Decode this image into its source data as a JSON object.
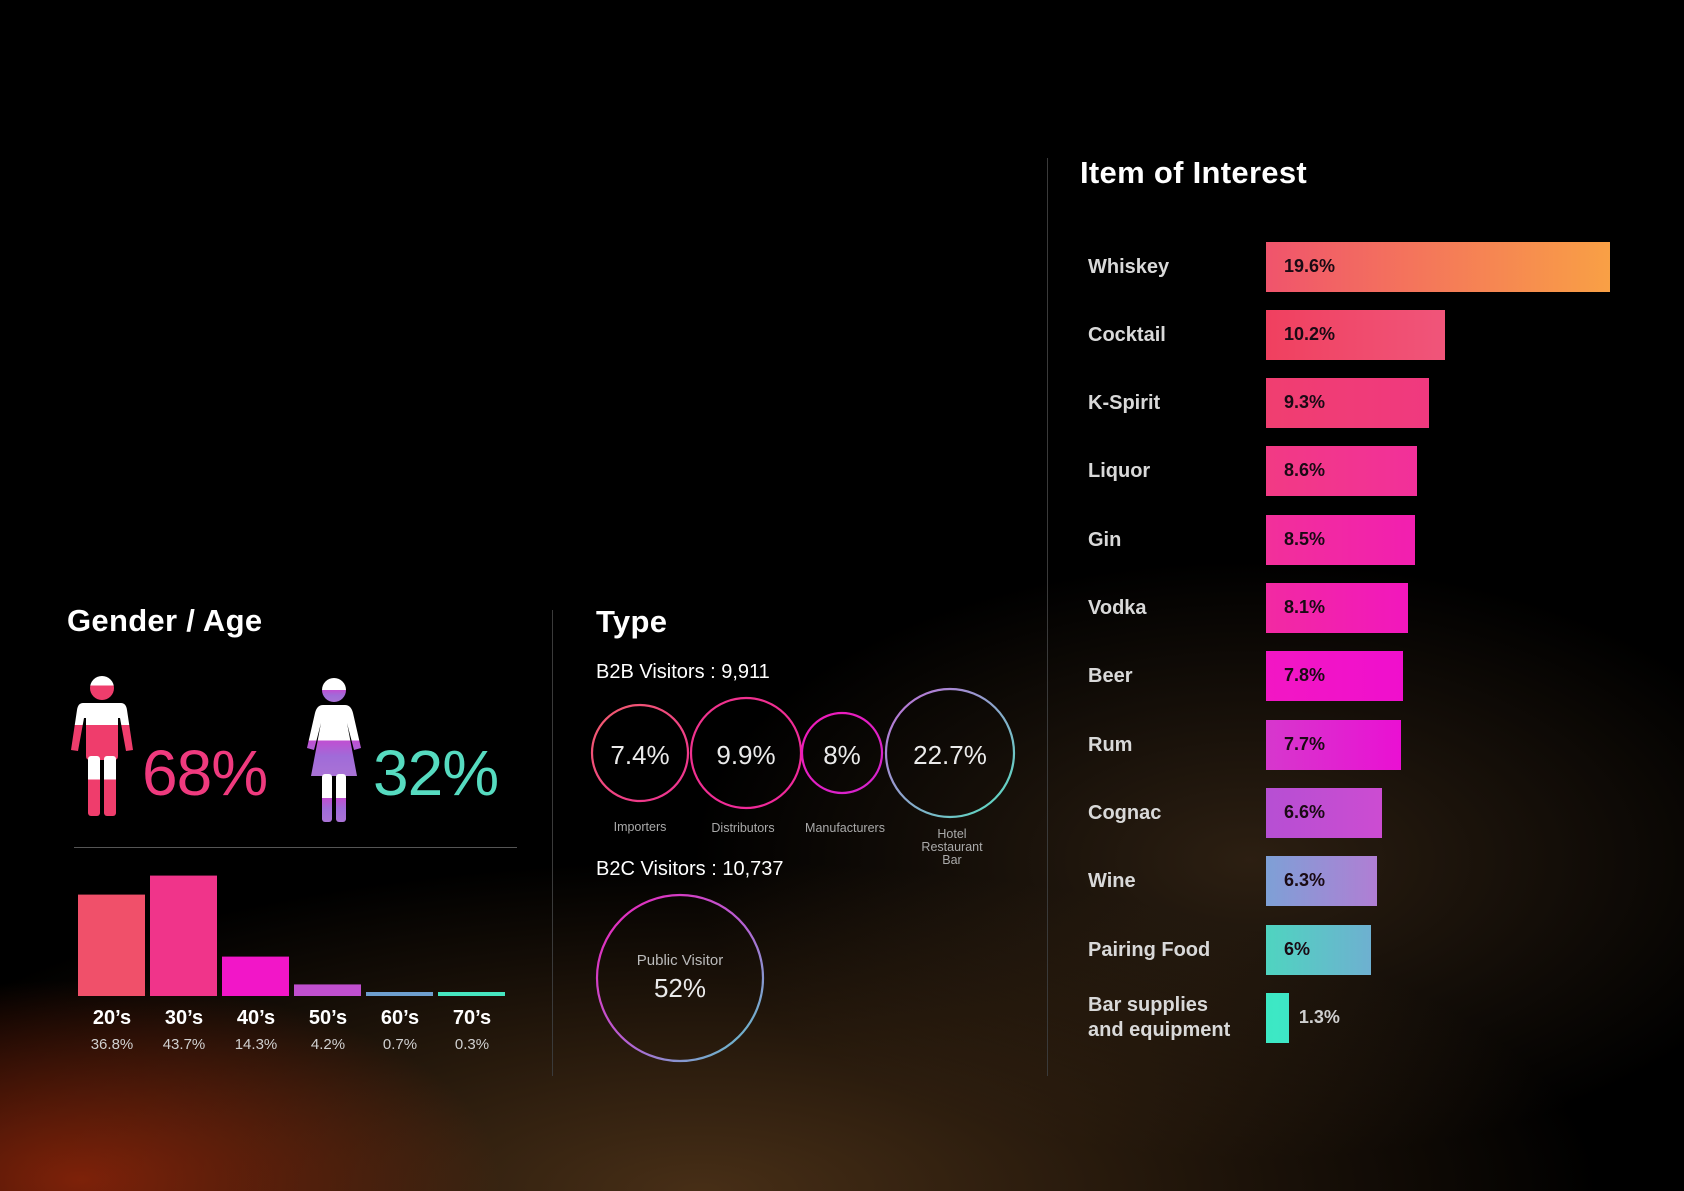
{
  "gender_age": {
    "title": "Gender / Age",
    "male_pct": "68%",
    "female_pct": "32%",
    "ages": [
      {
        "label": "20’s",
        "pct": "36.8%"
      },
      {
        "label": "30’s",
        "pct": "43.7%"
      },
      {
        "label": "40’s",
        "pct": "14.3%"
      },
      {
        "label": "50’s",
        "pct": "4.2%"
      },
      {
        "label": "60’s",
        "pct": "0.7%"
      },
      {
        "label": "70’s",
        "pct": "0.3%"
      }
    ]
  },
  "type": {
    "title": "Type",
    "b2b_label": "B2B Visitors : 9,911",
    "b2b": [
      {
        "pct": "7.4%",
        "caption": [
          "Importers"
        ]
      },
      {
        "pct": "9.9%",
        "caption": [
          "Distributors"
        ]
      },
      {
        "pct": "8%",
        "caption": [
          "Manufacturers"
        ]
      },
      {
        "pct": "22.7%",
        "caption": [
          "Hotel",
          "Restaurant",
          "Bar"
        ]
      }
    ],
    "b2c_label": "B2C Visitors : 10,737",
    "b2c": {
      "caption": "Public Visitor",
      "pct": "52%"
    }
  },
  "interest": {
    "title": "Item of Interest",
    "items": [
      {
        "label": [
          "Whiskey"
        ],
        "pct": "19.6%"
      },
      {
        "label": [
          "Cocktail"
        ],
        "pct": "10.2%"
      },
      {
        "label": [
          "K-Spirit"
        ],
        "pct": "9.3%"
      },
      {
        "label": [
          "Liquor"
        ],
        "pct": "8.6%"
      },
      {
        "label": [
          "Gin"
        ],
        "pct": "8.5%"
      },
      {
        "label": [
          "Vodka"
        ],
        "pct": "8.1%"
      },
      {
        "label": [
          "Beer"
        ],
        "pct": "7.8%"
      },
      {
        "label": [
          "Rum"
        ],
        "pct": "7.7%"
      },
      {
        "label": [
          "Cognac"
        ],
        "pct": "6.6%"
      },
      {
        "label": [
          "Wine"
        ],
        "pct": "6.3%"
      },
      {
        "label": [
          "Pairing Food"
        ],
        "pct": "6%"
      },
      {
        "label": [
          "Bar supplies",
          "and equipment"
        ],
        "pct": "1.3%"
      }
    ]
  },
  "colors": {
    "male_pct": "#ef3a7e",
    "female_pct": "#56dbc0",
    "age_bars": [
      "#f0506a",
      "#f0348a",
      "#f216c8",
      "#c04fcf",
      "#6e9fcf",
      "#46e6c0"
    ],
    "b2b_rings": [
      [
        "#f25e6d",
        "#ee2f93"
      ],
      [
        "#f0348a",
        "#f0279e"
      ],
      [
        "#f21ab8",
        "#d324d0"
      ],
      [
        "#c36ad8",
        "#54e2c0"
      ]
    ],
    "b2c_ring": [
      "#ef1fb8",
      "#52d2c8"
    ],
    "interest_bars": [
      [
        "#f0546c",
        "#f9a045"
      ],
      [
        "#f0405f",
        "#f0557a"
      ],
      [
        "#f03e70",
        "#f0397f"
      ],
      [
        "#f23a84",
        "#f2309a"
      ],
      [
        "#f2309a",
        "#f21fb0"
      ],
      [
        "#f22aa2",
        "#f217bd"
      ],
      [
        "#f217c4",
        "#f00fcd"
      ],
      [
        "#d638cd",
        "#ea10d3"
      ],
      [
        "#b64fd3",
        "#cc4cd2"
      ],
      [
        "#7ea0d6",
        "#b07ed4"
      ],
      [
        "#4fd4c0",
        "#6eb0d0"
      ],
      [
        "#3ce9c4",
        "#3ee6c6"
      ]
    ]
  },
  "chart_data": [
    {
      "type": "bar",
      "title": "Gender / Age",
      "categories": [
        "20’s",
        "30’s",
        "40’s",
        "50’s",
        "60’s",
        "70’s"
      ],
      "values": [
        36.8,
        43.7,
        14.3,
        4.2,
        0.7,
        0.3
      ],
      "ylim": [
        0,
        45
      ]
    },
    {
      "type": "pie",
      "title": "Type",
      "categories": [
        "Importers",
        "Distributors",
        "Manufacturers",
        "Hotel Restaurant Bar",
        "Public Visitor"
      ],
      "values": [
        7.4,
        9.9,
        8,
        22.7,
        52
      ]
    },
    {
      "type": "bar",
      "title": "Item of Interest",
      "orientation": "horizontal",
      "categories": [
        "Whiskey",
        "Cocktail",
        "K-Spirit",
        "Liquor",
        "Gin",
        "Vodka",
        "Beer",
        "Rum",
        "Cognac",
        "Wine",
        "Pairing Food",
        "Bar supplies and equipment"
      ],
      "values": [
        19.6,
        10.2,
        9.3,
        8.6,
        8.5,
        8.1,
        7.8,
        7.7,
        6.6,
        6.3,
        6,
        1.3
      ],
      "xlim": [
        0,
        19.6
      ]
    }
  ]
}
